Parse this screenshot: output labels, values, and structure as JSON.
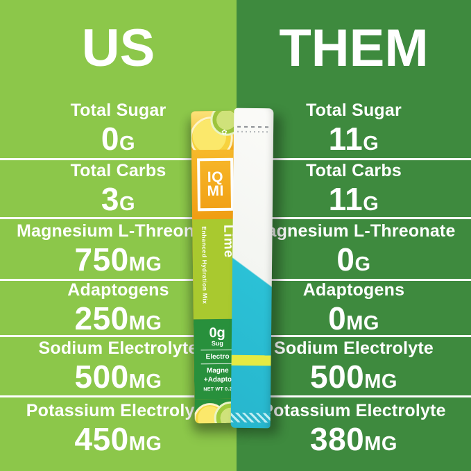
{
  "theme": {
    "left_bg": "#8CC74A",
    "right_bg": "#3E8A3E",
    "divider": "#FFFFFF",
    "text": "#FFFFFF",
    "packet_orange": "#F4A81D",
    "packet_lime_band": "#A9C92F",
    "packet_green": "#28903C",
    "them_packet_teal": "#2BC1D6",
    "them_packet_stripe": "#E5EA43"
  },
  "left": {
    "title": "US",
    "rows": [
      {
        "label": "Total Sugar",
        "value": "0",
        "unit": "G"
      },
      {
        "label": "Total Carbs",
        "value": "3",
        "unit": "G"
      },
      {
        "label": "Magnesium L-Threonate",
        "value": "750",
        "unit": "MG"
      },
      {
        "label": "Adaptogens",
        "value": "250",
        "unit": "MG"
      },
      {
        "label": "Sodium Electrolyte",
        "value": "500",
        "unit": "MG"
      },
      {
        "label": "Potassium Electrolyte",
        "value": "450",
        "unit": "MG"
      }
    ]
  },
  "right": {
    "title": "THEM",
    "rows": [
      {
        "label": "Total Sugar",
        "value": "11",
        "unit": "G"
      },
      {
        "label": "Total Carbs",
        "value": "11",
        "unit": "G"
      },
      {
        "label": "Magnesium L-Threonate",
        "value": "0",
        "unit": "G"
      },
      {
        "label": "Adaptogens",
        "value": "0",
        "unit": "MG"
      },
      {
        "label": "Sodium Electrolyte",
        "value": "500",
        "unit": "MG"
      },
      {
        "label": "Potassium Electrolyte",
        "value": "380",
        "unit": "MG"
      }
    ]
  },
  "us_packet": {
    "logo_top": "IQ",
    "logo_bottom": "MI",
    "flavor": "Lime",
    "tagline": "Enhanced Hydration Mix",
    "highlight_value": "0g",
    "highlight_label": "Sug",
    "feature_1": "Electro",
    "feature_2_line1": "Magne",
    "feature_2_line2": "+Adapto",
    "net_weight": "NET WT 0.2",
    "flower_glyph": "✿"
  }
}
